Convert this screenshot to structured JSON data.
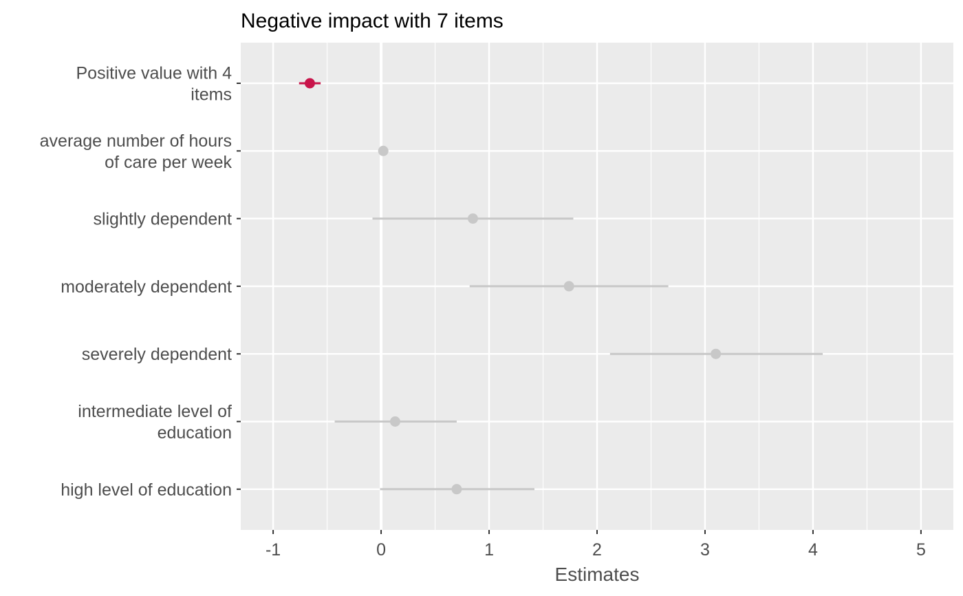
{
  "chart_data": {
    "type": "scatter",
    "title": "Negative impact with 7 items",
    "xlabel": "Estimates",
    "ylabel": "",
    "xlim": [
      -1.3,
      5.3
    ],
    "x_ticks": [
      -1,
      0,
      1,
      2,
      3,
      4,
      5
    ],
    "x_tick_labels": [
      "-1",
      "0",
      "1",
      "2",
      "3",
      "4",
      "5"
    ],
    "reference_line": 0,
    "grid": true,
    "legend": "none",
    "colors": {
      "panel_background": "#ebebeb",
      "grid": "#ffffff",
      "highlight": "#c8144a",
      "default": "#c8c8c8"
    },
    "rows": [
      {
        "label": [
          "Positive value with 4",
          "items"
        ],
        "estimate": -0.66,
        "ci_low": -0.76,
        "ci_high": -0.56,
        "highlight": true
      },
      {
        "label": [
          "average number of hours",
          "of care per week"
        ],
        "estimate": 0.02,
        "ci_low": 0.0,
        "ci_high": 0.04,
        "highlight": false
      },
      {
        "label": [
          "slightly dependent"
        ],
        "estimate": 0.85,
        "ci_low": -0.08,
        "ci_high": 1.78,
        "highlight": false
      },
      {
        "label": [
          "moderately dependent"
        ],
        "estimate": 1.74,
        "ci_low": 0.82,
        "ci_high": 2.66,
        "highlight": false
      },
      {
        "label": [
          "severely dependent"
        ],
        "estimate": 3.1,
        "ci_low": 2.12,
        "ci_high": 4.09,
        "highlight": false
      },
      {
        "label": [
          "intermediate level of",
          "education"
        ],
        "estimate": 0.13,
        "ci_low": -0.43,
        "ci_high": 0.7,
        "highlight": false
      },
      {
        "label": [
          "high level of education"
        ],
        "estimate": 0.7,
        "ci_low": -0.01,
        "ci_high": 1.42,
        "highlight": false
      }
    ]
  }
}
